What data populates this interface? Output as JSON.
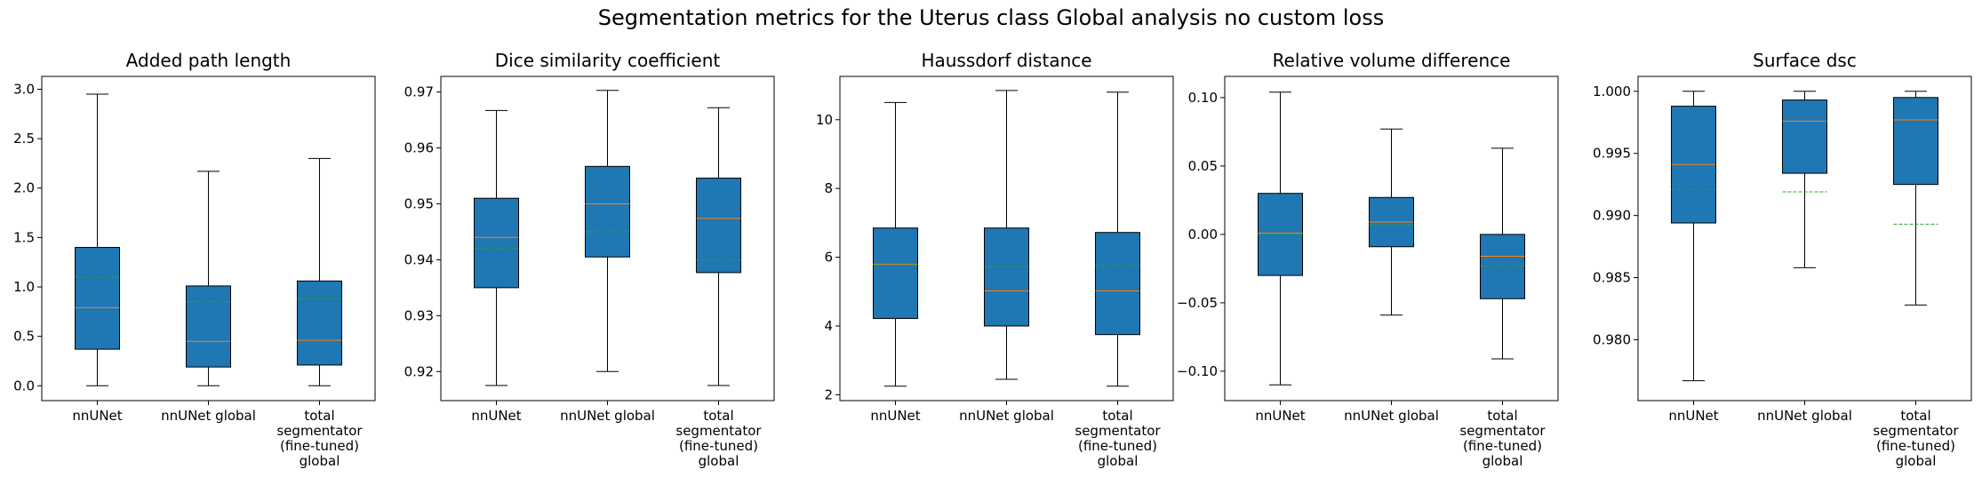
{
  "suptitle": "Segmentation metrics for the Uterus class Global analysis no custom loss",
  "colors": {
    "box_fill": "#1f77b4",
    "median": "#ff7f0e",
    "mean": "#2ca02c",
    "edge": "#000000"
  },
  "chart_data": [
    {
      "type": "box",
      "title": "Added path length",
      "categories": [
        [
          "nnUNet"
        ],
        [
          "nnUNet global"
        ],
        [
          "total",
          "segmentator",
          "(fine-tuned)",
          "global"
        ]
      ],
      "yticks": [
        "0.0",
        "0.5",
        "1.0",
        "1.5",
        "2.0",
        "2.5",
        "3.0"
      ],
      "ylim": [
        -0.15,
        3.13
      ],
      "boxes": [
        {
          "whislo": 0.0,
          "q1": 0.37,
          "med": 0.79,
          "mean": 1.1,
          "q3": 1.4,
          "whishi": 2.95
        },
        {
          "whislo": 0.0,
          "q1": 0.19,
          "med": 0.45,
          "mean": 0.85,
          "q3": 1.01,
          "whishi": 2.17
        },
        {
          "whislo": 0.0,
          "q1": 0.21,
          "med": 0.46,
          "mean": 0.88,
          "q3": 1.06,
          "whishi": 2.3
        }
      ]
    },
    {
      "type": "box",
      "title": "Dice similarity coefficient",
      "categories": [
        [
          "nnUNet"
        ],
        [
          "nnUNet global"
        ],
        [
          "total",
          "segmentator",
          "(fine-tuned)",
          "global"
        ]
      ],
      "yticks": [
        "0.92",
        "0.93",
        "0.94",
        "0.95",
        "0.96",
        "0.97"
      ],
      "ylim": [
        0.9148,
        0.9728
      ],
      "boxes": [
        {
          "whislo": 0.9175,
          "q1": 0.935,
          "med": 0.944,
          "mean": 0.942,
          "q3": 0.951,
          "whishi": 0.9667
        },
        {
          "whislo": 0.92,
          "q1": 0.9405,
          "med": 0.95,
          "mean": 0.945,
          "q3": 0.9567,
          "whishi": 0.9703
        },
        {
          "whislo": 0.9175,
          "q1": 0.9377,
          "med": 0.9474,
          "mean": 0.94,
          "q3": 0.9546,
          "whishi": 0.9672
        }
      ]
    },
    {
      "type": "box",
      "title": "Haussdorf distance",
      "categories": [
        [
          "nnUNet"
        ],
        [
          "nnUNet global"
        ],
        [
          "total",
          "segmentator",
          "(fine-tuned)",
          "global"
        ]
      ],
      "yticks": [
        "2",
        "4",
        "6",
        "8",
        "10"
      ],
      "ylim": [
        1.83,
        11.26
      ],
      "boxes": [
        {
          "whislo": 2.25,
          "q1": 4.22,
          "med": 5.8,
          "mean": 5.78,
          "q3": 6.85,
          "whishi": 10.5
        },
        {
          "whislo": 2.45,
          "q1": 4.0,
          "med": 5.02,
          "mean": 5.72,
          "q3": 6.85,
          "whishi": 10.85
        },
        {
          "whislo": 2.25,
          "q1": 3.75,
          "med": 5.02,
          "mean": 5.75,
          "q3": 6.72,
          "whishi": 10.8
        }
      ]
    },
    {
      "type": "box",
      "title": "Relative volume difference",
      "categories": [
        [
          "nnUNet"
        ],
        [
          "nnUNet global"
        ],
        [
          "total",
          "segmentator",
          "(fine-tuned)",
          "global"
        ]
      ],
      "yticks": [
        "−0.10",
        "−0.05",
        "0.00",
        "0.05",
        "0.10"
      ],
      "ylim": [
        -0.1215,
        0.1155
      ],
      "boxes": [
        {
          "whislo": -0.11,
          "q1": -0.03,
          "med": 0.001,
          "mean": 0.0,
          "q3": 0.03,
          "whishi": 0.104
        },
        {
          "whislo": -0.059,
          "q1": -0.009,
          "med": 0.009,
          "mean": 0.007,
          "q3": 0.027,
          "whishi": 0.077
        },
        {
          "whislo": -0.091,
          "q1": -0.047,
          "med": -0.016,
          "mean": -0.023,
          "q3": 0.0,
          "whishi": 0.063
        }
      ]
    },
    {
      "type": "box",
      "title": "Surface dsc",
      "categories": [
        [
          "nnUNet"
        ],
        [
          "nnUNet global"
        ],
        [
          "total",
          "segmentator",
          "(fine-tuned)",
          "global"
        ]
      ],
      "yticks": [
        "0.980",
        "0.985",
        "0.990",
        "0.995",
        "1.000"
      ],
      "ylim": [
        0.9751,
        1.0012
      ],
      "boxes": [
        {
          "whislo": 0.9767,
          "q1": 0.9894,
          "med": 0.9941,
          "mean": 0.9921,
          "q3": 0.9988,
          "whishi": 1.0
        },
        {
          "whislo": 0.9858,
          "q1": 0.9934,
          "med": 0.9976,
          "mean": 0.9919,
          "q3": 0.9993,
          "whishi": 1.0
        },
        {
          "whislo": 0.9828,
          "q1": 0.9925,
          "med": 0.9977,
          "mean": 0.9893,
          "q3": 0.9995,
          "whishi": 1.0
        }
      ]
    }
  ]
}
